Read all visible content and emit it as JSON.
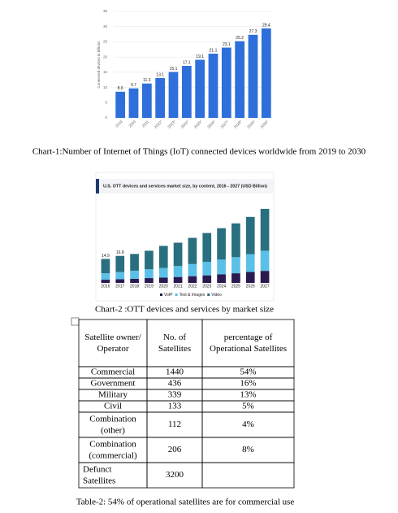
{
  "charts": [
    {
      "type": "bar",
      "y_label": "Connected devices in billions",
      "categories": [
        "2019",
        "2020",
        "2021",
        "2022*",
        "2023*",
        "2024*",
        "2025*",
        "2026*",
        "2027*",
        "2028*",
        "2029*",
        "2030*"
      ],
      "values": [
        8.6,
        9.7,
        11.3,
        13.1,
        15.1,
        17.1,
        19.1,
        21.1,
        23.1,
        25.2,
        27.3,
        29.4
      ],
      "color": "#2f6fdb",
      "ylim": [
        0,
        35
      ],
      "yticks": [
        0,
        5,
        10,
        15,
        20,
        25,
        30,
        35
      ],
      "grid": true,
      "caption": "Chart-1:Number of Internet of Things (IoT) connected devices worldwide from 2019 to 2030"
    },
    {
      "type": "stacked-bar",
      "title": "U.S. OTT devices and services market size, by content, 2016 - 2027 (USD Billion)",
      "categories": [
        "2016",
        "2017",
        "2018",
        "2019",
        "2020",
        "2021",
        "2022",
        "2023",
        "2024",
        "2025",
        "2026",
        "2027"
      ],
      "series": [
        {
          "name": "VoIP",
          "color": "#2b1a4f",
          "values": [
            2,
            2.3,
            2.6,
            3,
            3.3,
            3.7,
            4.2,
            4.7,
            5.3,
            6,
            6.8,
            7.5
          ]
        },
        {
          "name": "Text & Images",
          "color": "#5bc0e8",
          "values": [
            4,
            4.5,
            5,
            5.5,
            6,
            6.8,
            7.5,
            8.4,
            9.2,
            10,
            11,
            12.5
          ]
        },
        {
          "name": "Video",
          "color": "#2a6f7f",
          "values": [
            8.9,
            10,
            10.4,
            11.5,
            13.7,
            14.5,
            16.3,
            17.9,
            19.5,
            21,
            23.2,
            26
          ]
        }
      ],
      "total_labels": [
        14.9,
        16.8
      ],
      "caption": "Chart-2 :OTT devices and services by market size"
    }
  ],
  "table": {
    "header": [
      "Satellite owner/ Operator",
      "No. of Satellites",
      "percentage of Operational Satellites"
    ],
    "rows": [
      [
        "Commercial",
        1440,
        "54%"
      ],
      [
        "Government",
        436,
        "16%"
      ],
      [
        "Military",
        339,
        "13%"
      ],
      [
        "Civil",
        133,
        "5%"
      ],
      [
        "Combination (other)",
        112,
        "4%"
      ],
      [
        "Combination (commercial)",
        206,
        "8%"
      ],
      [
        "Defunct Satellites",
        3200,
        ""
      ]
    ],
    "caption": "Table-2: 54% of operational satellites are for commercial use"
  }
}
